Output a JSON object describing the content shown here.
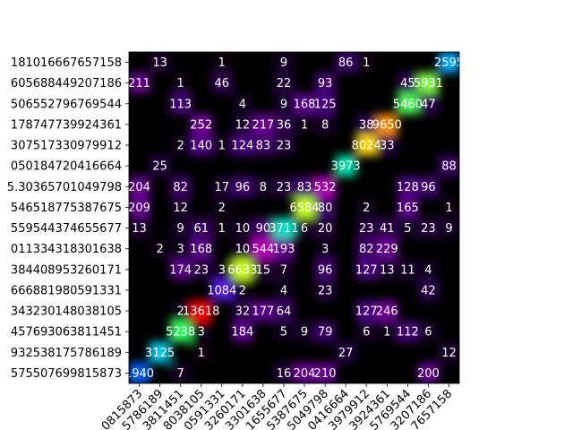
{
  "chart_data": {
    "type": "heatmap",
    "title": "",
    "xlabel": "",
    "ylabel": "",
    "colormap": [
      "#000000",
      "#4b0082",
      "#c000c0",
      "#0030ff",
      "#00c8ff",
      "#00ff80",
      "#ffff00",
      "#ff8000",
      "#ff0000"
    ],
    "background": "#000000",
    "y_labels": [
      "181016667657158",
      "605688449207186",
      "506552796769544",
      "178747739924361",
      "307517330979912",
      "050184720416664",
      "5.30365701049798",
      "546518775387675",
      "559544374655677",
      "011334318301638",
      "384408953260171",
      "666881980591331",
      "343230148038105",
      "457693063811451",
      "932538175786189",
      "575507699815873"
    ],
    "x_labels": [
      "0815873",
      "5786189",
      "3811451",
      "8038105",
      "0591331",
      "3260171",
      "3301638",
      "1655677",
      "5387675",
      "5049798",
      "0416664",
      "3979912",
      "3924361",
      "5769544",
      "3207186",
      "7657158"
    ],
    "values": [
      [
        0,
        13,
        0,
        0,
        1,
        0,
        0,
        9,
        0,
        0,
        86,
        1,
        0,
        0,
        0,
        2595
      ],
      [
        211,
        0,
        1,
        0,
        46,
        0,
        0,
        22,
        0,
        93,
        0,
        0,
        0,
        45,
        5931,
        0
      ],
      [
        0,
        0,
        113,
        0,
        0,
        4,
        0,
        9,
        168,
        125,
        0,
        0,
        0,
        5460,
        47,
        0
      ],
      [
        0,
        0,
        0,
        252,
        0,
        12,
        217,
        36,
        1,
        8,
        0,
        38,
        9650,
        0,
        0,
        0
      ],
      [
        0,
        0,
        2,
        140,
        1,
        124,
        83,
        23,
        0,
        0,
        0,
        8024,
        33,
        0,
        0,
        0
      ],
      [
        0,
        25,
        0,
        0,
        0,
        0,
        0,
        0,
        0,
        0,
        3973,
        0,
        0,
        0,
        0,
        88
      ],
      [
        204,
        0,
        82,
        0,
        17,
        96,
        8,
        23,
        83,
        532,
        0,
        0,
        0,
        128,
        96,
        0
      ],
      [
        209,
        0,
        12,
        0,
        2,
        0,
        0,
        0,
        6584,
        80,
        0,
        2,
        0,
        165,
        0,
        1
      ],
      [
        13,
        0,
        9,
        61,
        1,
        10,
        90,
        3711,
        6,
        20,
        0,
        23,
        41,
        5,
        23,
        9
      ],
      [
        0,
        2,
        3,
        168,
        0,
        10,
        544,
        193,
        0,
        3,
        0,
        82,
        229,
        0,
        0,
        0
      ],
      [
        0,
        0,
        174,
        23,
        3,
        6633,
        15,
        7,
        0,
        96,
        0,
        127,
        13,
        11,
        4,
        0
      ],
      [
        0,
        0,
        0,
        0,
        1084,
        2,
        0,
        4,
        0,
        23,
        0,
        0,
        0,
        0,
        42,
        0
      ],
      [
        0,
        0,
        2,
        13618,
        0,
        32,
        177,
        64,
        0,
        0,
        0,
        127,
        246,
        0,
        0,
        0
      ],
      [
        0,
        0,
        5238,
        3,
        0,
        184,
        0,
        5,
        9,
        79,
        0,
        6,
        1,
        112,
        6,
        0
      ],
      [
        0,
        3125,
        0,
        1,
        0,
        0,
        0,
        0,
        0,
        0,
        27,
        0,
        0,
        0,
        0,
        12
      ],
      [
        1940,
        0,
        7,
        0,
        0,
        0,
        0,
        16,
        204,
        210,
        0,
        0,
        0,
        0,
        200,
        0
      ]
    ],
    "vmax": 13618,
    "grid": false,
    "legend": "none"
  }
}
